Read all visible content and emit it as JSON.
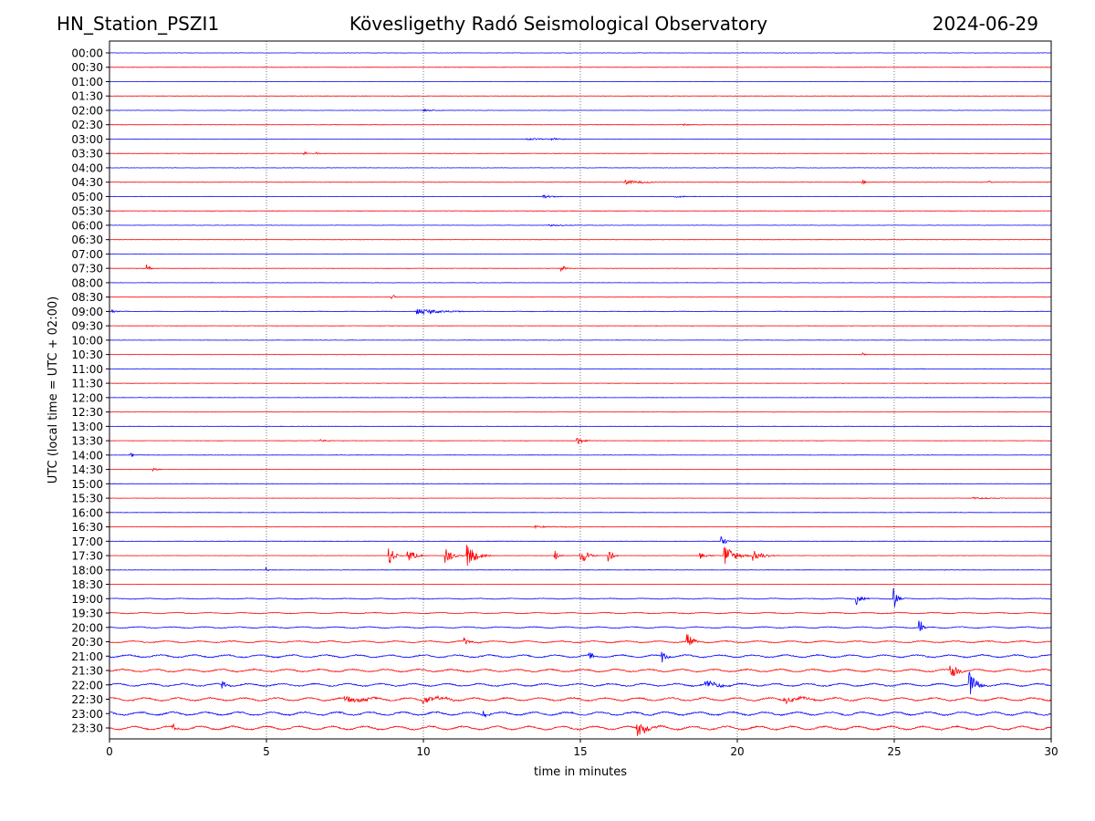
{
  "header": {
    "station": "HN_Station_PSZI1",
    "observatory": "Kövesligethy Radó Seismological Observatory",
    "date": "2024-06-29"
  },
  "chart_data": {
    "type": "line",
    "xlabel": "time in minutes",
    "ylabel": "UTC (local time = UTC + 02:00)",
    "xlim": [
      0,
      30
    ],
    "x_ticks": [
      "0",
      "5",
      "10",
      "15",
      "20",
      "25",
      "30"
    ],
    "grid": "vertical dotted at every 5 minutes",
    "row_labels": [
      "00:00",
      "00:30",
      "01:00",
      "01:30",
      "02:00",
      "02:30",
      "03:00",
      "03:30",
      "04:00",
      "04:30",
      "05:00",
      "05:30",
      "06:00",
      "06:30",
      "07:00",
      "07:30",
      "08:00",
      "08:30",
      "09:00",
      "09:30",
      "10:00",
      "10:30",
      "11:00",
      "11:30",
      "12:00",
      "12:30",
      "13:00",
      "13:30",
      "14:00",
      "14:30",
      "15:00",
      "15:30",
      "16:00",
      "16:30",
      "17:00",
      "17:30",
      "18:00",
      "18:30",
      "19:00",
      "19:30",
      "20:00",
      "20:30",
      "21:00",
      "21:30",
      "22:00",
      "22:30",
      "23:00",
      "23:30"
    ],
    "colors": [
      "#0000ff",
      "#ff0000"
    ],
    "series_note": "48 half-hour helicorder traces, alternating blue / red",
    "noise_level": [
      1,
      1,
      1,
      1,
      1,
      1,
      1,
      1,
      1,
      1,
      1,
      1,
      1,
      1,
      1,
      1,
      1,
      1,
      1.2,
      1,
      1,
      1,
      1,
      1,
      1,
      1,
      1,
      1,
      1,
      1,
      1,
      1,
      1,
      1,
      1,
      1,
      1,
      1,
      1.6,
      1.8,
      2,
      2.3,
      3,
      3,
      3,
      3.4,
      3.6,
      3.8
    ],
    "events": [
      {
        "row": 4,
        "x": 10.0,
        "amp": 1.2,
        "dur": 0.4
      },
      {
        "row": 5,
        "x": 18.3,
        "amp": 1.0,
        "dur": 0.3
      },
      {
        "row": 6,
        "x": 13.3,
        "amp": 1.3,
        "dur": 0.6
      },
      {
        "row": 6,
        "x": 14.1,
        "amp": 1.1,
        "dur": 0.3
      },
      {
        "row": 7,
        "x": 6.2,
        "amp": 2.0,
        "dur": 0.1
      },
      {
        "row": 7,
        "x": 6.6,
        "amp": 1.6,
        "dur": 0.1
      },
      {
        "row": 9,
        "x": 16.4,
        "amp": 2.5,
        "dur": 0.6
      },
      {
        "row": 9,
        "x": 24.0,
        "amp": 3.5,
        "dur": 0.08
      },
      {
        "row": 9,
        "x": 28.0,
        "amp": 2.2,
        "dur": 0.1
      },
      {
        "row": 10,
        "x": 13.8,
        "amp": 2.0,
        "dur": 0.3
      },
      {
        "row": 10,
        "x": 18.0,
        "amp": 1.4,
        "dur": 0.3
      },
      {
        "row": 12,
        "x": 14.0,
        "amp": 1.0,
        "dur": 0.6
      },
      {
        "row": 15,
        "x": 1.2,
        "amp": 5.0,
        "dur": 0.08
      },
      {
        "row": 15,
        "x": 14.4,
        "amp": 4.0,
        "dur": 0.15
      },
      {
        "row": 17,
        "x": 9.0,
        "amp": 6.0,
        "dur": 0.05
      },
      {
        "row": 18,
        "x": 9.8,
        "amp": 3.5,
        "dur": 0.7
      },
      {
        "row": 18,
        "x": 0.1,
        "amp": 2.0,
        "dur": 0.1
      },
      {
        "row": 21,
        "x": 24.0,
        "amp": 2.0,
        "dur": 0.1
      },
      {
        "row": 27,
        "x": 14.9,
        "amp": 4.0,
        "dur": 0.2
      },
      {
        "row": 27,
        "x": 6.7,
        "amp": 1.5,
        "dur": 0.2
      },
      {
        "row": 28,
        "x": 0.7,
        "amp": 3.0,
        "dur": 0.05
      },
      {
        "row": 29,
        "x": 1.4,
        "amp": 3.0,
        "dur": 0.1
      },
      {
        "row": 31,
        "x": 27.5,
        "amp": 1.2,
        "dur": 0.6
      },
      {
        "row": 33,
        "x": 13.5,
        "amp": 1.5,
        "dur": 0.8
      },
      {
        "row": 34,
        "x": 19.5,
        "amp": 8.0,
        "dur": 0.1
      },
      {
        "row": 35,
        "x": 8.9,
        "amp": 12.0,
        "dur": 0.15
      },
      {
        "row": 35,
        "x": 9.5,
        "amp": 8.0,
        "dur": 0.2
      },
      {
        "row": 35,
        "x": 10.7,
        "amp": 10.0,
        "dur": 0.2
      },
      {
        "row": 35,
        "x": 11.4,
        "amp": 14.0,
        "dur": 0.25
      },
      {
        "row": 35,
        "x": 14.2,
        "amp": 7.0,
        "dur": 0.1
      },
      {
        "row": 35,
        "x": 15.0,
        "amp": 10.0,
        "dur": 0.2
      },
      {
        "row": 35,
        "x": 15.9,
        "amp": 9.0,
        "dur": 0.1
      },
      {
        "row": 35,
        "x": 19.6,
        "amp": 12.0,
        "dur": 0.3
      },
      {
        "row": 35,
        "x": 20.5,
        "amp": 6.0,
        "dur": 0.3
      },
      {
        "row": 35,
        "x": 18.8,
        "amp": 4.0,
        "dur": 0.2
      },
      {
        "row": 36,
        "x": 5.0,
        "amp": 3.0,
        "dur": 0.05
      },
      {
        "row": 38,
        "x": 23.8,
        "amp": 6.0,
        "dur": 0.15
      },
      {
        "row": 38,
        "x": 25.0,
        "amp": 14.0,
        "dur": 0.1
      },
      {
        "row": 40,
        "x": 25.8,
        "amp": 12.0,
        "dur": 0.1
      },
      {
        "row": 41,
        "x": 18.4,
        "amp": 10.0,
        "dur": 0.15
      },
      {
        "row": 41,
        "x": 11.3,
        "amp": 4.0,
        "dur": 0.2
      },
      {
        "row": 42,
        "x": 17.6,
        "amp": 8.0,
        "dur": 0.1
      },
      {
        "row": 42,
        "x": 15.3,
        "amp": 6.0,
        "dur": 0.1
      },
      {
        "row": 43,
        "x": 26.8,
        "amp": 12.0,
        "dur": 0.15
      },
      {
        "row": 44,
        "x": 3.6,
        "amp": 6.0,
        "dur": 0.1
      },
      {
        "row": 44,
        "x": 27.4,
        "amp": 14.0,
        "dur": 0.2
      },
      {
        "row": 44,
        "x": 19.0,
        "amp": 3.0,
        "dur": 0.7
      },
      {
        "row": 45,
        "x": 7.5,
        "amp": 4.0,
        "dur": 0.6
      },
      {
        "row": 45,
        "x": 10.0,
        "amp": 4.0,
        "dur": 0.6
      },
      {
        "row": 45,
        "x": 21.5,
        "amp": 3.5,
        "dur": 0.6
      },
      {
        "row": 46,
        "x": 11.9,
        "amp": 5.0,
        "dur": 0.1
      },
      {
        "row": 47,
        "x": 2.0,
        "amp": 5.0,
        "dur": 0.1
      },
      {
        "row": 47,
        "x": 16.8,
        "amp": 9.0,
        "dur": 0.3
      }
    ]
  }
}
